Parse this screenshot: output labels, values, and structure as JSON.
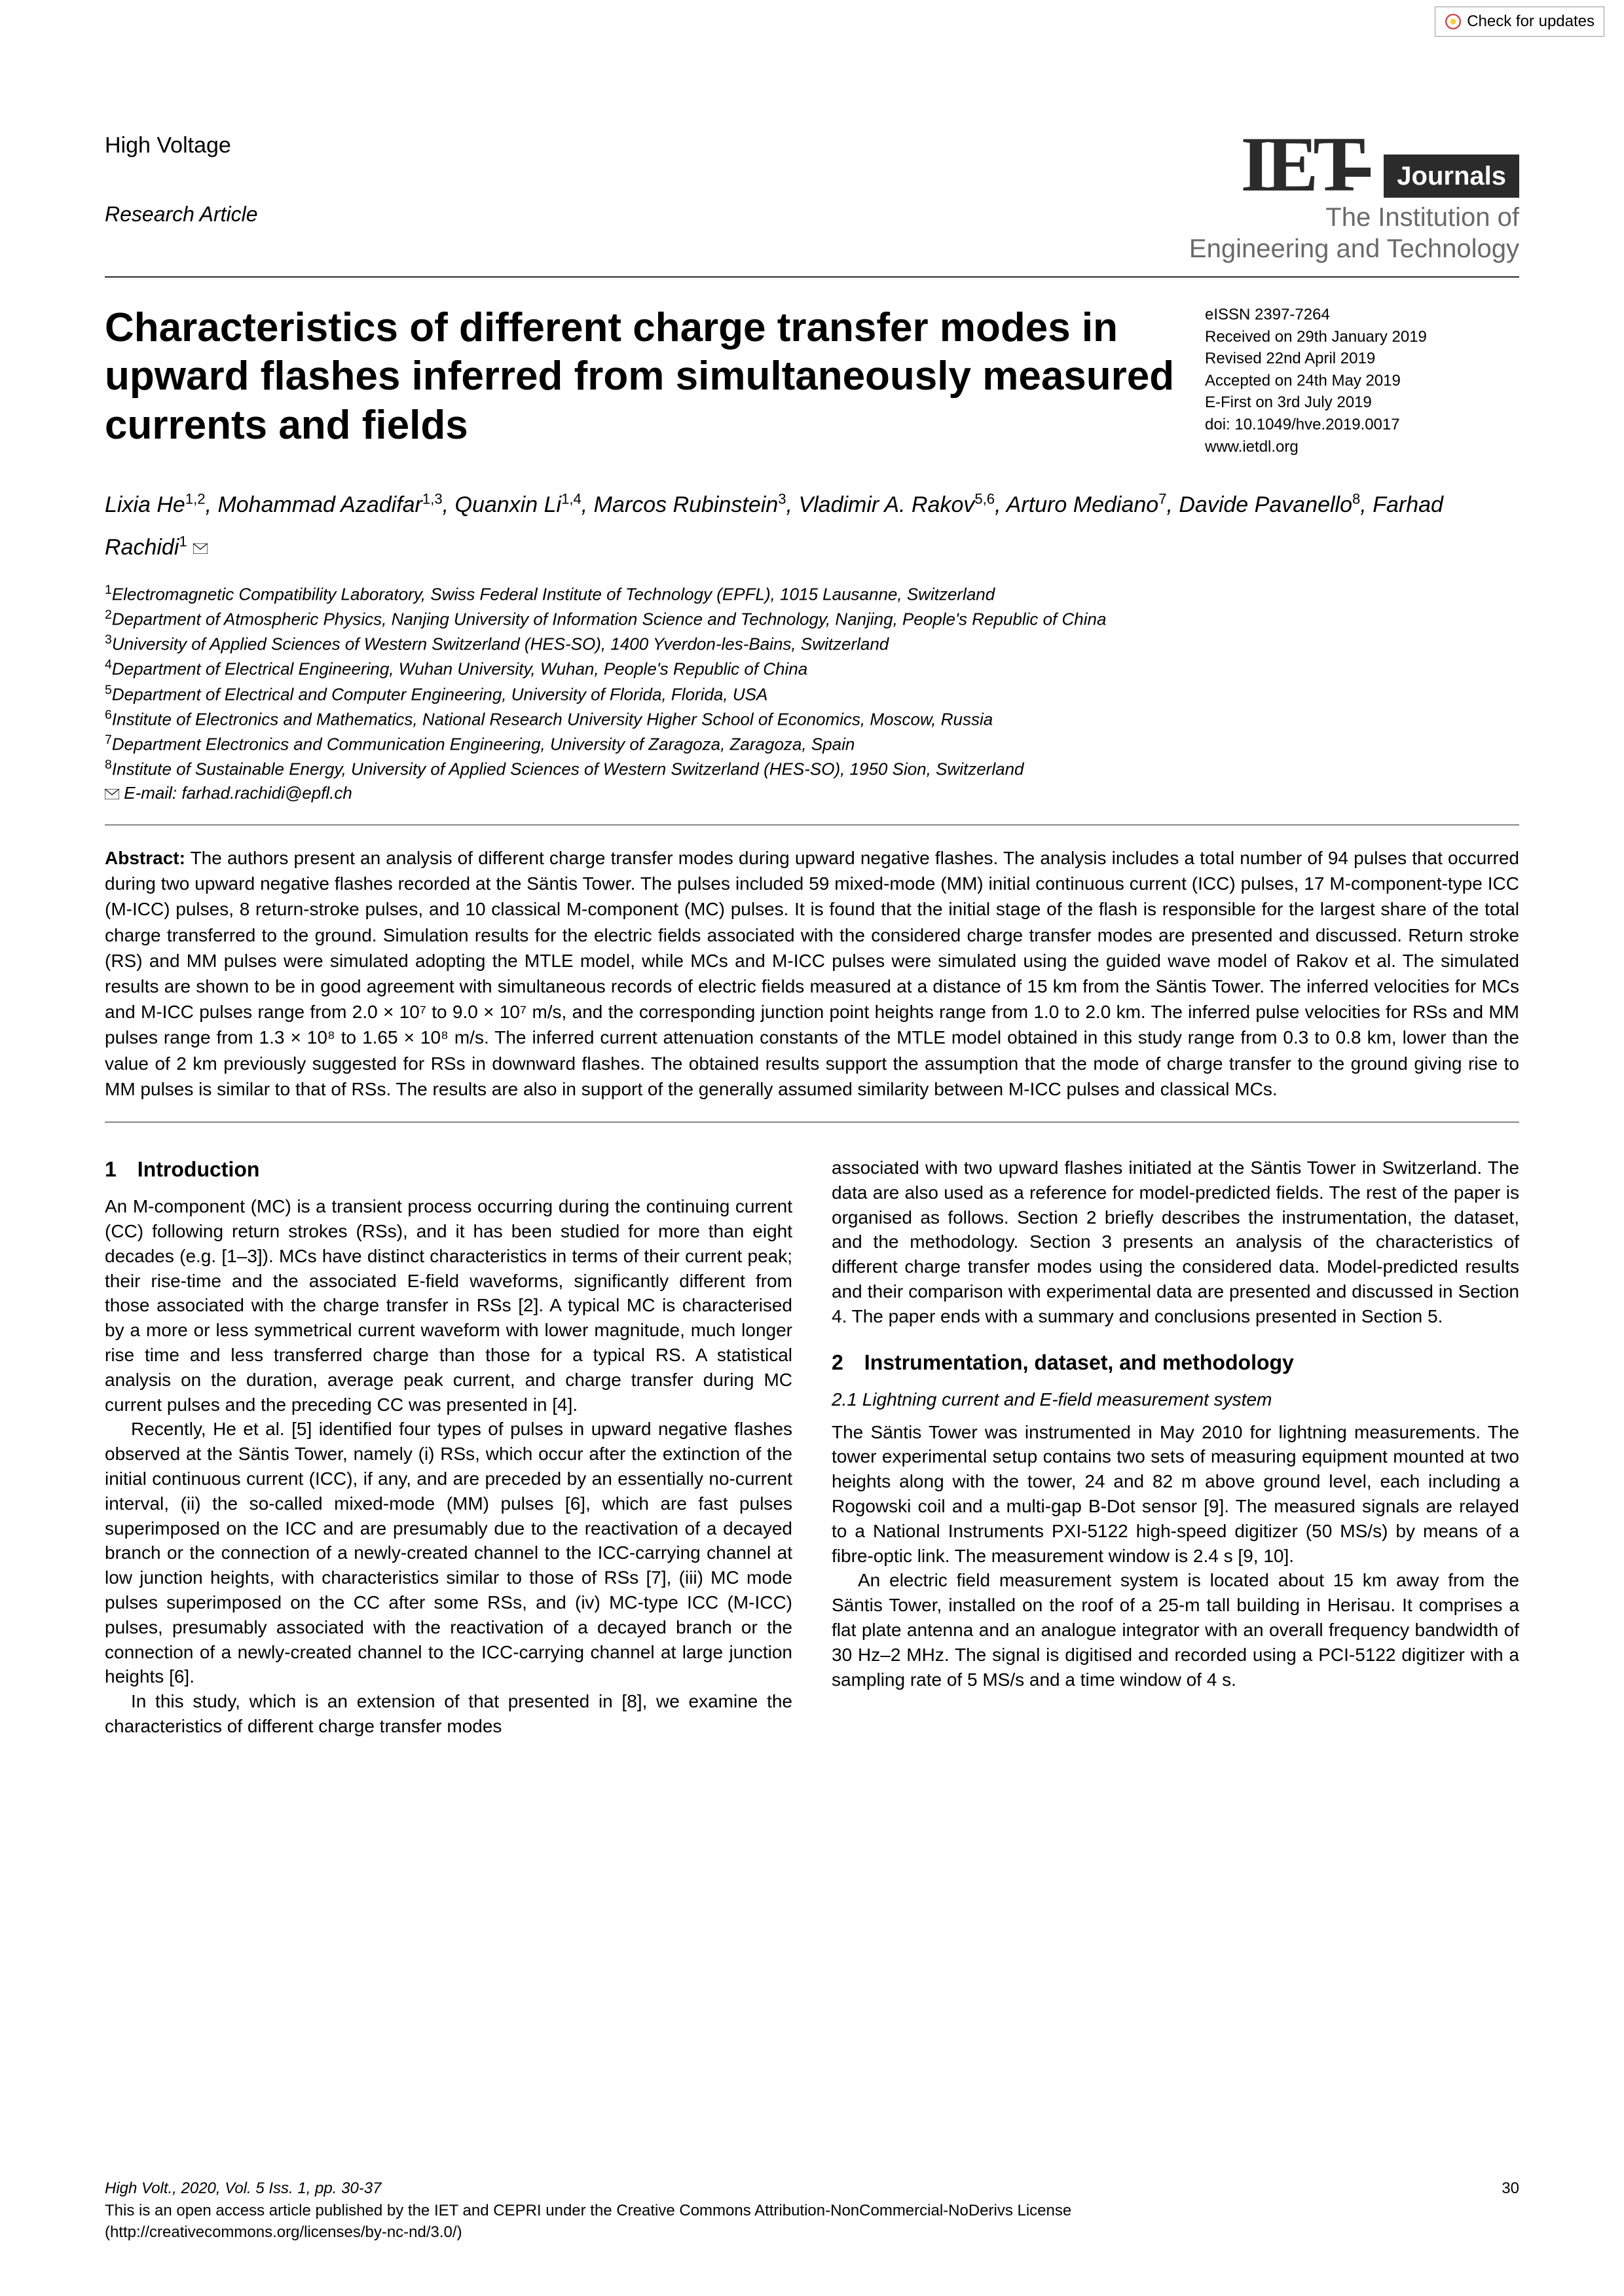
{
  "check_updates": "Check for updates",
  "journal_name": "High Voltage",
  "article_type": "Research Article",
  "iet": {
    "badge": "Journals",
    "tagline1": "The Institution of",
    "tagline2": "Engineering and Technology"
  },
  "title": "Characteristics of different charge transfer modes in upward flashes inferred from simultaneously measured currents and fields",
  "meta": {
    "eissn": "eISSN 2397-7264",
    "received": "Received on 29th January 2019",
    "revised": "Revised 22nd April 2019",
    "accepted": "Accepted on 24th May 2019",
    "efirst": "E-First on 3rd July 2019",
    "doi": "doi: 10.1049/hve.2019.0017",
    "url": "www.ietdl.org"
  },
  "authors_html": "Lixia He<sup>1,2</sup>, Mohammad Azadifar<sup>1,3</sup>, Quanxin Li<sup>1,4</sup>, Marcos Rubinstein<sup>3</sup>, Vladimir A. Rakov<sup>5,6</sup>, Arturo Mediano<sup>7</sup>, Davide Pavanello<sup>8</sup>, Farhad Rachidi<sup>1</sup>",
  "affiliations": [
    "Electromagnetic Compatibility Laboratory, Swiss Federal Institute of Technology (EPFL), 1015 Lausanne, Switzerland",
    "Department of Atmospheric Physics, Nanjing University of Information Science and Technology, Nanjing, People's Republic of China",
    "University of Applied Sciences of Western Switzerland (HES-SO), 1400 Yverdon-les-Bains, Switzerland",
    "Department of Electrical Engineering, Wuhan University, Wuhan, People's Republic of China",
    "Department of Electrical and Computer Engineering, University of Florida, Florida, USA",
    "Institute of Electronics and Mathematics, National Research University Higher School of Economics, Moscow, Russia",
    "Department Electronics and Communication Engineering, University of Zaragoza, Zaragoza, Spain",
    "Institute of Sustainable Energy, University of Applied Sciences of Western Switzerland (HES-SO), 1950 Sion, Switzerland"
  ],
  "email_label": "E-mail: farhad.rachidi@epfl.ch",
  "abstract_label": "Abstract:",
  "abstract": "The authors present an analysis of different charge transfer modes during upward negative flashes. The analysis includes a total number of 94 pulses that occurred during two upward negative flashes recorded at the Säntis Tower. The pulses included 59 mixed-mode (MM) initial continuous current (ICC) pulses, 17 M-component-type ICC (M-ICC) pulses, 8 return-stroke pulses, and 10 classical M-component (MC) pulses. It is found that the initial stage of the flash is responsible for the largest share of the total charge transferred to the ground. Simulation results for the electric fields associated with the considered charge transfer modes are presented and discussed. Return stroke (RS) and MM pulses were simulated adopting the MTLE model, while MCs and M-ICC pulses were simulated using the guided wave model of Rakov et al. The simulated results are shown to be in good agreement with simultaneous records of electric fields measured at a distance of 15 km from the Säntis Tower. The inferred velocities for MCs and M-ICC pulses range from 2.0 × 10⁷ to 9.0 × 10⁷ m/s, and the corresponding junction point heights range from 1.0 to 2.0 km. The inferred pulse velocities for RSs and MM pulses range from 1.3 × 10⁸ to 1.65 × 10⁸ m/s. The inferred current attenuation constants of the MTLE model obtained in this study range from 0.3 to 0.8 km, lower than the value of 2 km previously suggested for RSs in downward flashes. The obtained results support the assumption that the mode of charge transfer to the ground giving rise to MM pulses is similar to that of RSs. The results are also in support of the generally assumed similarity between M-ICC pulses and classical MCs.",
  "sec1_heading": "1 Introduction",
  "sec1_p1": "An M-component (MC) is a transient process occurring during the continuing current (CC) following return strokes (RSs), and it has been studied for more than eight decades (e.g. [1–3]). MCs have distinct characteristics in terms of their current peak; their rise-time and the associated E-field waveforms, significantly different from those associated with the charge transfer in RSs [2]. A typical MC is characterised by a more or less symmetrical current waveform with lower magnitude, much longer rise time and less transferred charge than those for a typical RS. A statistical analysis on the duration, average peak current, and charge transfer during MC current pulses and the preceding CC was presented in [4].",
  "sec1_p2": "Recently, He et al. [5] identified four types of pulses in upward negative flashes observed at the Säntis Tower, namely (i) RSs, which occur after the extinction of the initial continuous current (ICC), if any, and are preceded by an essentially no-current interval, (ii) the so-called mixed-mode (MM) pulses [6], which are fast pulses superimposed on the ICC and are presumably due to the reactivation of a decayed branch or the connection of a newly-created channel to the ICC-carrying channel at low junction heights, with characteristics similar to those of RSs [7], (iii) MC mode pulses superimposed on the CC after some RSs, and (iv) MC-type ICC (M-ICC) pulses, presumably associated with the reactivation of a decayed branch or the connection of a newly-created channel to the ICC-carrying channel at large junction heights [6].",
  "sec1_p3": "In this study, which is an extension of that presented in [8], we examine the characteristics of different charge transfer modes",
  "col2_p1": "associated with two upward flashes initiated at the Säntis Tower in Switzerland. The data are also used as a reference for model-predicted fields. The rest of the paper is organised as follows. Section 2 briefly describes the instrumentation, the dataset, and the methodology. Section 3 presents an analysis of the characteristics of different charge transfer modes using the considered data. Model-predicted results and their comparison with experimental data are presented and discussed in Section 4. The paper ends with a summary and conclusions presented in Section 5.",
  "sec2_heading": "2 Instrumentation, dataset, and methodology",
  "sec21_heading": "2.1 Lightning current and E-field measurement system",
  "sec21_p1": "The Säntis Tower was instrumented in May 2010 for lightning measurements. The tower experimental setup contains two sets of measuring equipment mounted at two heights along with the tower, 24 and 82 m above ground level, each including a Rogowski coil and a multi-gap B-Dot sensor [9]. The measured signals are relayed to a National Instruments PXI-5122 high-speed digitizer (50 MS/s) by means of a fibre-optic link. The measurement window is 2.4 s [9, 10].",
  "sec21_p2": "An electric field measurement system is located about 15 km away from the Säntis Tower, installed on the roof of a 25-m tall building in Herisau. It comprises a flat plate antenna and an analogue integrator with an overall frequency bandwidth of 30 Hz–2 MHz. The signal is digitised and recorded using a PCI-5122 digitizer with a sampling rate of 5 MS/s and a time window of 4 s.",
  "footer": {
    "citation": "High Volt., 2020, Vol. 5 Iss. 1, pp. 30-37",
    "page": "30",
    "license1": "This is an open access article published by the IET and CEPRI under the Creative Commons Attribution-NonCommercial-NoDerivs License",
    "license2": "(http://creativecommons.org/licenses/by-nc-nd/3.0/)"
  }
}
